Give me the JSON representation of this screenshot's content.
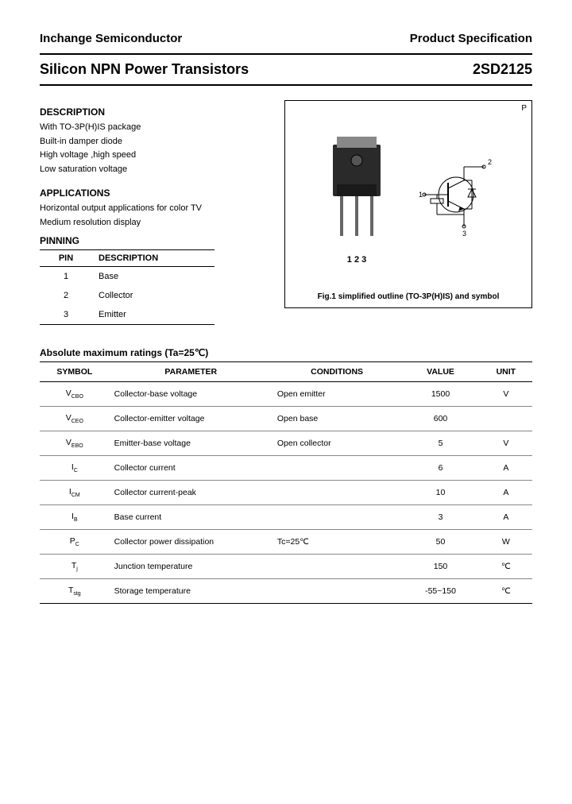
{
  "header": {
    "company": "Inchange Semiconductor",
    "doc_type": "Product Specification"
  },
  "title": {
    "product_family": "Silicon NPN Power Transistors",
    "part_number": "2SD2125"
  },
  "description": {
    "head": "DESCRIPTION",
    "items": [
      "With TO-3P(H)IS package",
      "Built-in damper diode",
      "High voltage ,high speed",
      "Low saturation voltage"
    ]
  },
  "applications": {
    "head": "APPLICATIONS",
    "items": [
      "Horizontal output applications for color TV",
      "Medium resolution display"
    ]
  },
  "pinning": {
    "head": "PINNING",
    "col1": "PIN",
    "col2": "DESCRIPTION",
    "rows": [
      {
        "pin": "1",
        "desc": "Base"
      },
      {
        "pin": "2",
        "desc": "Collector"
      },
      {
        "pin": "3",
        "desc": "Emitter"
      }
    ]
  },
  "figure": {
    "pin_labels": "1  2  3",
    "sym_1": "1",
    "sym_2": "2",
    "sym_3": "3",
    "caption": "Fig.1 simplified outline (TO-3P(H)IS) and symbol",
    "corner": "P"
  },
  "ratings": {
    "title": "Absolute maximum ratings (Ta=25℃)",
    "columns": [
      "SYMBOL",
      "PARAMETER",
      "CONDITIONS",
      "VALUE",
      "UNIT"
    ],
    "rows": [
      {
        "sym_main": "V",
        "sym_sub": "CBO",
        "param": "Collector-base voltage",
        "cond": "Open emitter",
        "val": "1500",
        "unit": "V"
      },
      {
        "sym_main": "V",
        "sym_sub": "CEO",
        "param": "Collector-emitter voltage",
        "cond": "Open base",
        "val": "600",
        "unit": ""
      },
      {
        "sym_main": "V",
        "sym_sub": "EBO",
        "param": "Emitter-base voltage",
        "cond": "Open collector",
        "val": "5",
        "unit": "V"
      },
      {
        "sym_main": "I",
        "sym_sub": "C",
        "param": "Collector current",
        "cond": "",
        "val": "6",
        "unit": "A"
      },
      {
        "sym_main": "I",
        "sym_sub": "CM",
        "param": "Collector current-peak",
        "cond": "",
        "val": "10",
        "unit": "A"
      },
      {
        "sym_main": "I",
        "sym_sub": "B",
        "param": "Base current",
        "cond": "",
        "val": "3",
        "unit": "A"
      },
      {
        "sym_main": "P",
        "sym_sub": "C",
        "param": "Collector power dissipation",
        "cond": "Tc=25℃",
        "val": "50",
        "unit": "W"
      },
      {
        "sym_main": "T",
        "sym_sub": "j",
        "param": "Junction temperature",
        "cond": "",
        "val": "150",
        "unit": "℃"
      },
      {
        "sym_main": "T",
        "sym_sub": "stg",
        "param": "Storage temperature",
        "cond": "",
        "val": "-55~150",
        "unit": "℃"
      }
    ]
  },
  "colors": {
    "text": "#000000",
    "border": "#000000",
    "row_border": "#888888",
    "package_body": "#2a2a2a",
    "background": "#ffffff"
  }
}
